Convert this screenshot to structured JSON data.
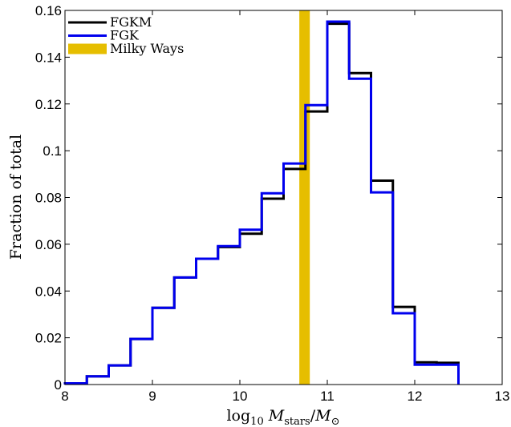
{
  "chart_data": {
    "type": "step-histogram",
    "xlabel": "log10 Mstars/M⊙",
    "xlabel_parts": {
      "log": "log",
      "log_sub": "10",
      "m1": "M",
      "m1_sub": "stars",
      "slash": "/",
      "m2": "M",
      "m2_sub": "⊙"
    },
    "ylabel": "Fraction of total",
    "xlim": [
      8,
      13
    ],
    "ylim": [
      0,
      0.16
    ],
    "x_ticks": [
      8,
      9,
      10,
      11,
      12,
      13
    ],
    "x_tick_labels": [
      "8",
      "9",
      "10",
      "11",
      "12",
      "13"
    ],
    "y_ticks": [
      0,
      0.02,
      0.04,
      0.06,
      0.08,
      0.1,
      0.12,
      0.14,
      0.16
    ],
    "y_tick_labels": [
      "0",
      "0.02",
      "0.04",
      "0.06",
      "0.08",
      "0.1",
      "0.12",
      "0.14",
      "0.16"
    ],
    "bin_edges": [
      8.0,
      8.25,
      8.5,
      8.75,
      9.0,
      9.25,
      9.5,
      9.75,
      10.0,
      10.25,
      10.5,
      10.75,
      11.0,
      11.25,
      11.5,
      11.75,
      12.0,
      12.25,
      12.5
    ],
    "series": [
      {
        "name": "FGKM",
        "color": "#000000",
        "values": [
          0.0005,
          0.0035,
          0.0082,
          0.0195,
          0.0328,
          0.0458,
          0.0538,
          0.0588,
          0.0645,
          0.0795,
          0.0922,
          0.1168,
          0.1543,
          0.1332,
          0.0872,
          0.0332,
          0.0095,
          0.0093
        ]
      },
      {
        "name": "FGK",
        "color": "#0000ee",
        "values": [
          0.0005,
          0.0035,
          0.0082,
          0.0195,
          0.0328,
          0.0458,
          0.0538,
          0.0592,
          0.0662,
          0.0818,
          0.0945,
          0.1195,
          0.1552,
          0.1308,
          0.0822,
          0.0305,
          0.0085,
          0.0085
        ]
      }
    ],
    "band": {
      "name": "Milky Ways",
      "color": "#e6be00",
      "x_range": [
        10.68,
        10.8
      ]
    },
    "legend": {
      "placement": "top-left",
      "entries": [
        "FGKM",
        "FGK",
        "Milky Ways"
      ]
    },
    "grid": false
  }
}
